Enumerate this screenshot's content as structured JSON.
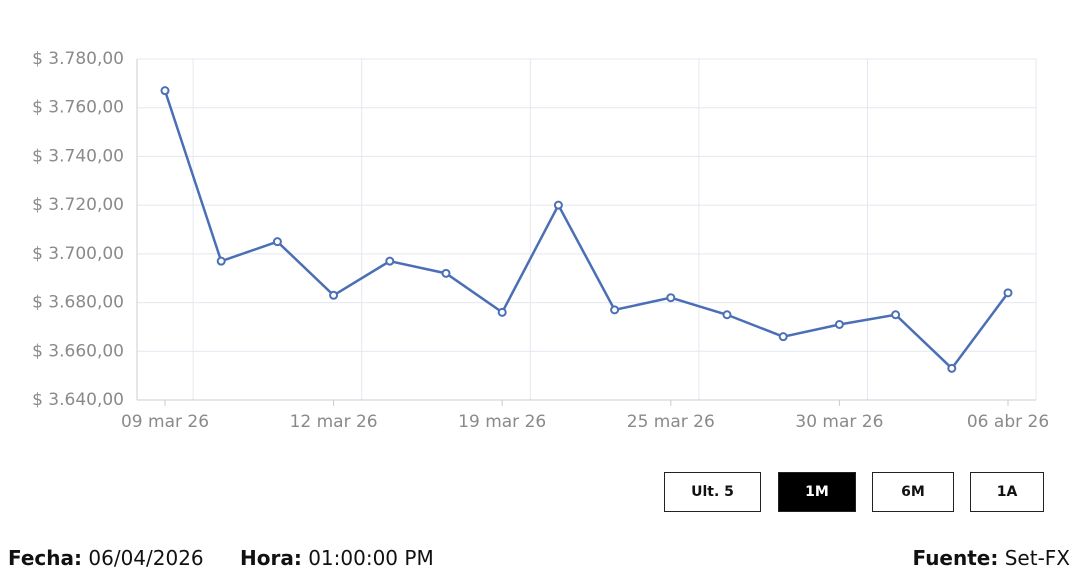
{
  "chart_data": {
    "type": "line",
    "categories": [
      "09 mar 26",
      null,
      null,
      "12 mar 26",
      null,
      null,
      "19 mar 26",
      null,
      null,
      "25 mar 26",
      null,
      null,
      "30 mar 26",
      null,
      null,
      "06 abr 26"
    ],
    "series": [
      {
        "color": "#4a6fb5",
        "values": [
          3767,
          3697,
          3705,
          3683,
          3697,
          3692,
          3676,
          3720,
          3677,
          3682,
          3675,
          3666,
          3671,
          3675,
          3653,
          3684
        ]
      }
    ],
    "ylim": [
      3640,
      3780
    ],
    "yticks": [
      {
        "value": 3640,
        "label": "$ 3.640,00"
      },
      {
        "value": 3660,
        "label": "$ 3.660,00"
      },
      {
        "value": 3680,
        "label": "$ 3.680,00"
      },
      {
        "value": 3700,
        "label": "$ 3.700,00"
      },
      {
        "value": 3720,
        "label": "$ 3.720,00"
      },
      {
        "value": 3740,
        "label": "$ 3.740,00"
      },
      {
        "value": 3760,
        "label": "$ 3.760,00"
      },
      {
        "value": 3780,
        "label": "$ 3.780,00"
      }
    ],
    "grid": true
  },
  "controls": {
    "buttons": [
      "Ult. 5",
      "1M",
      "6M",
      "1A"
    ],
    "active": 1
  },
  "footer": {
    "date_label": "Fecha:",
    "date": "06/04/2026",
    "time_label": "Hora:",
    "time": "01:00:00 PM",
    "source_label": "Fuente:",
    "source": "Set-FX"
  }
}
